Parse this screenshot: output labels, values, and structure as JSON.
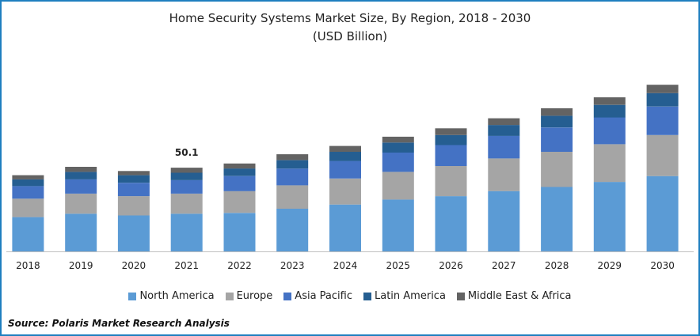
{
  "chart_data": {
    "type": "bar",
    "stacked": true,
    "title": "Home Security Systems Market Size, By Region, 2018 - 2030",
    "subtitle": "(USD Billion)",
    "categories": [
      "2018",
      "2019",
      "2020",
      "2021",
      "2022",
      "2023",
      "2024",
      "2025",
      "2026",
      "2027",
      "2028",
      "2029",
      "2030"
    ],
    "series": [
      {
        "name": "North America",
        "color": "#5b9bd5",
        "values": [
          20.5,
          22.5,
          21.5,
          22.5,
          23.0,
          25.5,
          28.0,
          31.0,
          33.0,
          36.0,
          38.5,
          41.5,
          45.0
        ]
      },
      {
        "name": "Europe",
        "color": "#a5a5a5",
        "values": [
          11.0,
          12.0,
          11.5,
          12.0,
          13.0,
          14.0,
          15.5,
          16.5,
          18.0,
          19.5,
          21.0,
          22.5,
          24.5
        ]
      },
      {
        "name": "Asia Pacific",
        "color": "#4472c4",
        "values": [
          7.5,
          8.5,
          8.0,
          8.0,
          9.0,
          10.0,
          10.5,
          11.5,
          12.5,
          13.5,
          14.5,
          16.0,
          17.0
        ]
      },
      {
        "name": "Latin America",
        "color": "#255e91",
        "values": [
          4.0,
          4.5,
          4.5,
          4.5,
          4.5,
          5.0,
          5.5,
          6.0,
          6.0,
          6.5,
          7.0,
          7.5,
          8.0
        ]
      },
      {
        "name": "Middle East & Africa",
        "color": "#636363",
        "values": [
          2.5,
          3.0,
          2.5,
          3.0,
          3.0,
          3.5,
          3.5,
          3.5,
          4.0,
          4.0,
          4.5,
          4.5,
          5.0
        ]
      }
    ],
    "annotations": [
      {
        "category": "2021",
        "text": "50.1"
      }
    ],
    "ylim": [
      0,
      110
    ],
    "grid": false,
    "legend_position": "bottom"
  },
  "source": "Source: Polaris  Market Research Analysis"
}
